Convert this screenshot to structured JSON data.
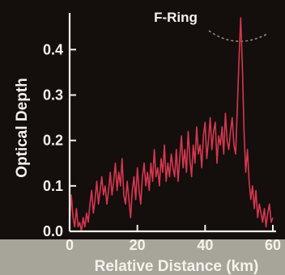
{
  "chart_data": {
    "type": "line",
    "title": "F-Ring",
    "xlabel": "Relative Distance (km)",
    "ylabel": "Optical Depth",
    "xlim": [
      0,
      60
    ],
    "ylim": [
      0,
      0.47
    ],
    "xticks": [
      0,
      20,
      40,
      60
    ],
    "yticks": [
      0.0,
      0.1,
      0.2,
      0.3,
      0.4
    ],
    "xtick_labels": [
      "0",
      "20",
      "40",
      "60"
    ],
    "ytick_labels": [
      "0.0",
      "0.1",
      "0.2",
      "0.3",
      "0.4"
    ],
    "grid": false,
    "line_color": "#d6374f",
    "series": [
      {
        "x": [
          0,
          0.5,
          1,
          1.5,
          2,
          2.5,
          3,
          3.5,
          4,
          4.5,
          5,
          5.5,
          6,
          6.5,
          7,
          7.5,
          8,
          8.5,
          9,
          9.5,
          10,
          10.5,
          11,
          11.5,
          12,
          12.5,
          13,
          13.5,
          14,
          14.5,
          15,
          15.5,
          16,
          16.5,
          17,
          17.5,
          18,
          18.5,
          19,
          19.5,
          20,
          20.5,
          21,
          21.5,
          22,
          22.5,
          23,
          23.5,
          24,
          24.5,
          25,
          25.5,
          26,
          26.5,
          27,
          27.5,
          28,
          28.5,
          29,
          29.5,
          30,
          30.5,
          31,
          31.5,
          32,
          32.5,
          33,
          33.5,
          34,
          34.5,
          35,
          35.5,
          36,
          36.5,
          37,
          37.5,
          38,
          38.5,
          39,
          39.5,
          40,
          40.5,
          41,
          41.5,
          42,
          42.5,
          43,
          43.5,
          44,
          44.5,
          45,
          45.5,
          46,
          46.5,
          47,
          47.5,
          48,
          48.5,
          49,
          49.5,
          50,
          50.5,
          51,
          51.5,
          52,
          52.5,
          53,
          53.5,
          54,
          54.5,
          55,
          55.5,
          56,
          56.5,
          57,
          57.5,
          58,
          58.5,
          59,
          59.5,
          60
        ],
        "values": [
          0.02,
          0.08,
          0.03,
          0.01,
          0.05,
          0.01,
          0.02,
          0.0,
          0.03,
          0.01,
          0.04,
          0.02,
          0.06,
          0.09,
          0.04,
          0.07,
          0.11,
          0.06,
          0.09,
          0.12,
          0.08,
          0.1,
          0.06,
          0.09,
          0.13,
          0.08,
          0.11,
          0.15,
          0.09,
          0.13,
          0.1,
          0.16,
          0.08,
          0.06,
          0.11,
          0.07,
          0.03,
          0.09,
          0.12,
          0.07,
          0.14,
          0.09,
          0.06,
          0.12,
          0.15,
          0.1,
          0.13,
          0.09,
          0.15,
          0.11,
          0.18,
          0.12,
          0.14,
          0.1,
          0.16,
          0.13,
          0.19,
          0.11,
          0.15,
          0.12,
          0.17,
          0.14,
          0.12,
          0.18,
          0.11,
          0.16,
          0.21,
          0.14,
          0.18,
          0.13,
          0.22,
          0.16,
          0.12,
          0.19,
          0.15,
          0.23,
          0.17,
          0.19,
          0.14,
          0.21,
          0.24,
          0.16,
          0.2,
          0.25,
          0.18,
          0.22,
          0.24,
          0.15,
          0.21,
          0.19,
          0.23,
          0.17,
          0.26,
          0.2,
          0.18,
          0.22,
          0.25,
          0.19,
          0.17,
          0.27,
          0.38,
          0.47,
          0.36,
          0.22,
          0.13,
          0.18,
          0.11,
          0.07,
          0.1,
          0.05,
          0.09,
          0.03,
          0.06,
          0.04,
          0.02,
          0.05,
          0.01,
          0.04,
          0.06,
          0.02,
          0.03
        ]
      }
    ]
  }
}
